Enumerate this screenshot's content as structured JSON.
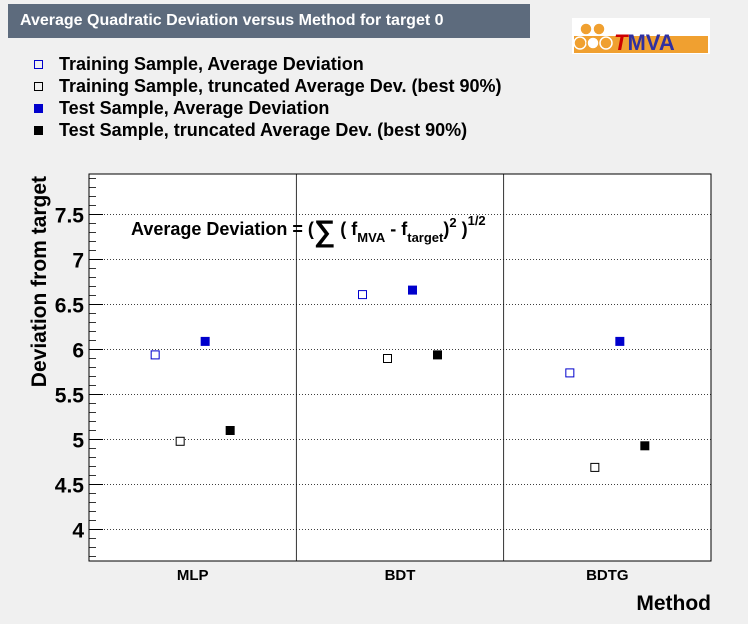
{
  "header": {
    "title": "Average Quadratic Deviation versus Method for target 0",
    "logo_text": "TMVA"
  },
  "legend": [
    {
      "label": "Training Sample, Average Deviation",
      "marker": "open-square",
      "color": "#0000cc"
    },
    {
      "label": "Training Sample, truncated Average Dev. (best 90%)",
      "marker": "open-square",
      "color": "#000000"
    },
    {
      "label": "Test Sample, Average Deviation",
      "marker": "filled-square",
      "color": "#0000cc"
    },
    {
      "label": "Test Sample, truncated Average Dev. (best 90%)",
      "marker": "filled-square",
      "color": "#000000"
    }
  ],
  "chart_data": {
    "type": "scatter",
    "categories": [
      "MLP",
      "BDT",
      "BDTG"
    ],
    "xlabel": "Method",
    "ylabel": "Deviation from target",
    "ylim": [
      3.65,
      7.95
    ],
    "yticks": [
      "4",
      "4.5",
      "5",
      "5.5",
      "6",
      "6.5",
      "7",
      "7.5"
    ],
    "grid": true,
    "annotation": {
      "prefix": "Average Deviation = (",
      "sum": "∑",
      "open": " (  f",
      "sub1": "MVA",
      "minus": " - f",
      "sub2": "target",
      "close": ")",
      "sup1": "2",
      "close2": " )",
      "sup2": "1/2"
    },
    "series": [
      {
        "name": "Training Sample, Average Deviation",
        "marker": "open-square",
        "color": "#0000cc",
        "values": [
          5.94,
          6.61,
          5.74
        ]
      },
      {
        "name": "Training Sample, truncated Average Dev. (best 90%)",
        "marker": "open-square",
        "color": "#000000",
        "values": [
          4.98,
          5.9,
          4.69
        ]
      },
      {
        "name": "Test Sample, Average Deviation",
        "marker": "filled-square",
        "color": "#0000cc",
        "values": [
          6.09,
          6.66,
          6.09
        ]
      },
      {
        "name": "Test Sample, truncated Average Dev. (best 90%)",
        "marker": "filled-square",
        "color": "#000000",
        "values": [
          5.1,
          5.94,
          4.93
        ]
      }
    ]
  }
}
